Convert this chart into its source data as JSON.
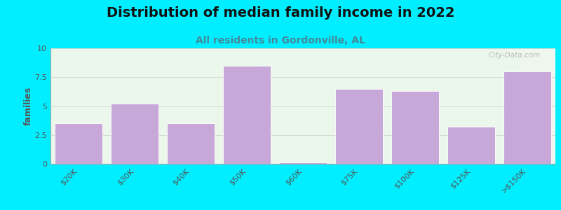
{
  "title": "Distribution of median family income in 2022",
  "subtitle": "All residents in Gordonville, AL",
  "categories": [
    "$20K",
    "$30K",
    "$40K",
    "$50K",
    "$60K",
    "$75K",
    "$100K",
    "$125K",
    ">$150K"
  ],
  "values": [
    3.5,
    5.2,
    3.5,
    8.5,
    0.15,
    6.5,
    6.3,
    3.2,
    8.0
  ],
  "bar_color": "#c8a8d8",
  "bar_edge_color": "#ffffff",
  "background_color": "#00eeff",
  "ylabel": "families",
  "ylim": [
    0,
    10
  ],
  "yticks": [
    0,
    2.5,
    5,
    7.5,
    10
  ],
  "title_fontsize": 14,
  "subtitle_fontsize": 10,
  "subtitle_color": "#448899",
  "title_color": "#111111",
  "watermark": "City-Data.com",
  "tick_color": "#555555",
  "axis_color": "#aaaaaa"
}
